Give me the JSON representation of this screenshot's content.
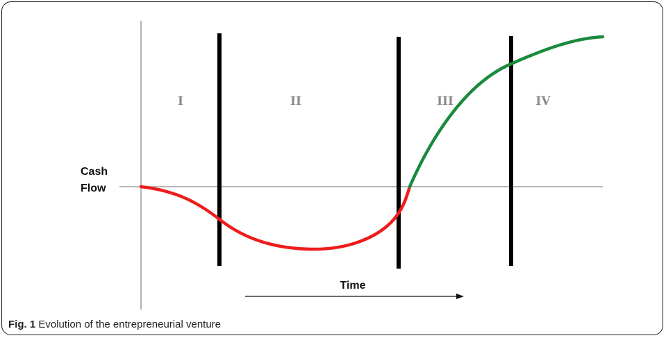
{
  "figure": {
    "caption_label": "Fig. 1",
    "caption_text": "Evolution of the entrepreneurial venture"
  },
  "diagram": {
    "y_axis_label_line1": "Cash",
    "y_axis_label_line2": "Flow",
    "time_label": "Time",
    "phases": [
      "I",
      "II",
      "III",
      "IV"
    ],
    "colors": {
      "negative_curve": "#ee1c1c",
      "positive_curve": "#1a8a3c",
      "dividers": "#000000",
      "axes": "#8c8c8c",
      "phase_labels": "#8a8a8a"
    }
  }
}
